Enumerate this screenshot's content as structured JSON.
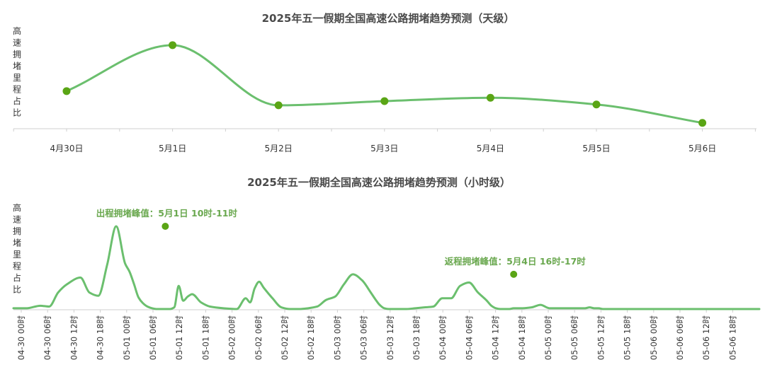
{
  "colors": {
    "line": "#6bbf6e",
    "marker": "#5aa515",
    "annotation": "#6aa84f",
    "axis": "#cfcfcf",
    "text": "#333333",
    "title": "#4a4a4a"
  },
  "chart_data": [
    {
      "type": "line",
      "title": "2025年五一假期全国高速公路拥堵趋势预测（天级）",
      "ylabel": "高速拥堵里程占比",
      "categories": [
        "4月30日",
        "5月1日",
        "5月2日",
        "5月3日",
        "5月4日",
        "5月5日",
        "5月6日"
      ],
      "values": [
        45,
        100,
        28,
        33,
        37,
        29,
        7
      ],
      "ylim": [
        0,
        110
      ],
      "smooth": true,
      "markers": true,
      "grid": false
    },
    {
      "type": "line",
      "title": "2025年五一假期全国高速公路拥堵趋势预测（小时级）",
      "ylabel": "高速拥堵里程占比",
      "categories": [
        "04-30 00时",
        "04-30 06时",
        "04-30 12时",
        "04-30 18时",
        "05-01 00时",
        "05-01 06时",
        "05-01 12时",
        "05-01 18时",
        "05-02 00时",
        "05-02 06时",
        "05-02 12时",
        "05-02 18时",
        "05-03 00时",
        "05-03 06时",
        "05-03 12时",
        "05-03 18时",
        "05-04 00时",
        "05-04 06时",
        "05-04 12时",
        "05-04 18时",
        "05-05 00时",
        "05-05 06时",
        "05-05 12时",
        "05-05 18时",
        "05-06 00时",
        "05-06 06时",
        "05-06 12时",
        "05-06 18时"
      ],
      "x": [
        0,
        3,
        6,
        8,
        10,
        12,
        15,
        17,
        19,
        21,
        23,
        25,
        26,
        27,
        28,
        29,
        30,
        31,
        32,
        33,
        34,
        35,
        36,
        37,
        38,
        39,
        40,
        42,
        44,
        47,
        50,
        52,
        53,
        54,
        55,
        56,
        58,
        60,
        62,
        64,
        66,
        68,
        70,
        72,
        74,
        76,
        78,
        80,
        81,
        82,
        83,
        84,
        86,
        88,
        90,
        92,
        94,
        96,
        98,
        100,
        102,
        104,
        106,
        107,
        108,
        109,
        110,
        111,
        112,
        114,
        116,
        118,
        120,
        122,
        124,
        126,
        128,
        129,
        130,
        131,
        132,
        133,
        134,
        136,
        138,
        141,
        144,
        147,
        150,
        152,
        154,
        156,
        159,
        162,
        165,
        167
      ],
      "values": [
        1,
        1,
        4,
        3,
        20,
        30,
        38,
        20,
        16,
        54,
        100,
        55,
        45,
        30,
        14,
        7,
        3,
        1,
        0,
        0,
        0,
        0,
        2,
        28,
        10,
        15,
        18,
        8,
        3,
        1,
        0,
        13,
        8,
        25,
        33,
        26,
        13,
        2,
        0,
        0,
        1,
        3,
        11,
        15,
        30,
        42,
        35,
        20,
        12,
        5,
        1,
        0,
        0,
        0,
        1,
        2,
        3,
        13,
        13,
        28,
        32,
        20,
        10,
        4,
        1,
        0,
        0,
        0,
        1,
        1,
        2,
        5,
        1,
        1,
        1,
        1,
        1,
        2,
        1,
        1,
        0,
        0,
        0,
        0,
        0,
        0,
        0,
        0,
        0,
        0,
        0,
        0,
        0,
        0,
        0,
        0
      ],
      "ylim": [
        0,
        105
      ],
      "smooth": true,
      "markers": false,
      "grid": false,
      "annotations": [
        {
          "text": "出程拥堵峰值：5月1日 10时-11时",
          "x": 34,
          "y": 100
        },
        {
          "text": "返程拥堵峰值：5月4日 16时-17时",
          "x": 112,
          "y": 42
        }
      ]
    }
  ]
}
